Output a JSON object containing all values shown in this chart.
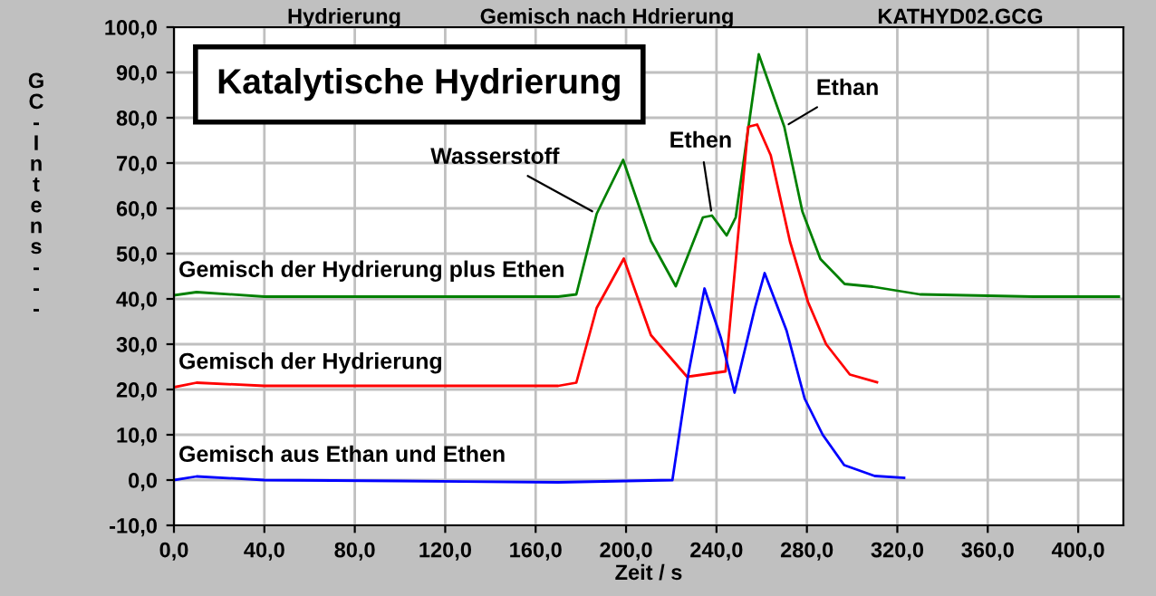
{
  "chart_data": {
    "type": "line",
    "title": "Katalytische Hydrierung",
    "xlabel": "Zeit / s",
    "ylabel": "GC-Intens---",
    "annotations": [
      "Hydrierung",
      "Gemisch nach Hdrierung",
      "KATHYD02.GCG",
      {
        "text": "Wasserstoff",
        "x": 187,
        "y": 58.8
      },
      {
        "text": "Ethen",
        "x": 238,
        "y": 58.4
      },
      {
        "text": "Ethan",
        "x": 270,
        "y": 78
      }
    ],
    "xlim": [
      0,
      420
    ],
    "ylim": [
      -10,
      100
    ],
    "xticks": [
      {
        "value": 0,
        "label": "0,0"
      },
      {
        "value": 40,
        "label": "40,0"
      },
      {
        "value": 80,
        "label": "80,0"
      },
      {
        "value": 120,
        "label": "120,0"
      },
      {
        "value": 160,
        "label": "160,0"
      },
      {
        "value": 200,
        "label": "200,0"
      },
      {
        "value": 240,
        "label": "240,0"
      },
      {
        "value": 280,
        "label": "280,0"
      },
      {
        "value": 320,
        "label": "320,0"
      },
      {
        "value": 360,
        "label": "360,0"
      },
      {
        "value": 400,
        "label": "400,0"
      }
    ],
    "yticks": [
      {
        "value": -10,
        "label": "-10,0"
      },
      {
        "value": 0,
        "label": "0,0"
      },
      {
        "value": 10,
        "label": "10,0"
      },
      {
        "value": 20,
        "label": "20,0"
      },
      {
        "value": 30,
        "label": "30,0"
      },
      {
        "value": 40,
        "label": "40,0"
      },
      {
        "value": 50,
        "label": "50,0"
      },
      {
        "value": 60,
        "label": "60,0"
      },
      {
        "value": 70,
        "label": "70,0"
      },
      {
        "value": 80,
        "label": "80,0"
      },
      {
        "value": 90,
        "label": "90,0"
      },
      {
        "value": 100,
        "label": "100,0"
      }
    ],
    "grid": true,
    "legend": false,
    "marker": "none",
    "line_style": "solid",
    "series": [
      {
        "name": "Gemisch der Hydrierung plus Ethen",
        "color": "#008000",
        "x": [
          0,
          10,
          40,
          100,
          170,
          178,
          187,
          198.7,
          211,
          222,
          234,
          238,
          244.5,
          248.5,
          258.7,
          270,
          278,
          286,
          296.7,
          309,
          330,
          380,
          418
        ],
        "values": [
          40.8,
          41.5,
          40.5,
          40.5,
          40.5,
          41,
          58.8,
          70.7,
          52.8,
          42.8,
          58,
          58.4,
          54,
          58,
          94,
          78,
          59.3,
          48.8,
          43.3,
          42.7,
          41,
          40.5,
          40.5
        ]
      },
      {
        "name": "Gemisch der Hydrierung",
        "color": "#ff0000",
        "x": [
          0,
          10,
          40,
          100,
          170,
          178,
          187,
          199,
          211,
          227,
          244,
          254,
          258,
          264,
          272.5,
          280.5,
          288.5,
          299,
          311
        ],
        "values": [
          20.5,
          21.5,
          20.8,
          20.8,
          20.8,
          21.5,
          38,
          48.9,
          32,
          22.8,
          24,
          78,
          78.5,
          71.7,
          52.7,
          39.3,
          30,
          23.3,
          21.6
        ]
      },
      {
        "name": "Gemisch aus Ethan und Ethen",
        "color": "#0000ff",
        "x": [
          0,
          10,
          40,
          100,
          170,
          220.5,
          227.5,
          234.7,
          242,
          248,
          257,
          261.3,
          271,
          279,
          287,
          296.5,
          310,
          323
        ],
        "values": [
          0,
          0.8,
          0,
          -0.2,
          -0.5,
          0,
          23.3,
          42.3,
          31.3,
          19.3,
          38,
          45.7,
          33,
          18,
          10,
          3.3,
          0.9,
          0.5
        ]
      }
    ]
  }
}
